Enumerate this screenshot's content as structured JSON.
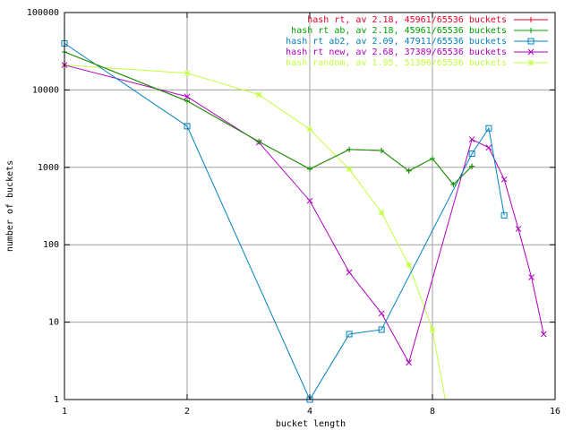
{
  "chart_data": {
    "type": "line",
    "xlabel": "bucket length",
    "ylabel": "number of buckets",
    "x_scale": "log2",
    "y_scale": "log10",
    "xlim": [
      1,
      16
    ],
    "ylim": [
      1,
      100000
    ],
    "x_ticks": [
      "1",
      "2",
      "4",
      "8",
      "16"
    ],
    "y_ticks": [
      "1",
      "10",
      "100",
      "1000",
      "10000",
      "100000"
    ],
    "grid": true,
    "legend_position": "top-right",
    "series": [
      {
        "name": "hash rt, av 2.18, 45961/65536 buckets",
        "color": "#e8002a",
        "marker": "plus",
        "x": [
          1,
          2,
          3,
          4,
          5,
          6,
          7,
          8,
          9,
          10
        ],
        "y": [
          31000,
          7200,
          2150,
          950,
          1700,
          1650,
          900,
          1300,
          600,
          1030
        ]
      },
      {
        "name": "hash rt ab, av 2.18, 45961/65536 buckets",
        "color": "#00a000",
        "marker": "plus",
        "x": [
          1,
          2,
          3,
          4,
          5,
          6,
          7,
          8,
          9,
          10
        ],
        "y": [
          31000,
          7200,
          2150,
          950,
          1700,
          1650,
          900,
          1300,
          600,
          1030
        ]
      },
      {
        "name": "hash rt ab2, av 2.09, 47911/65536 buckets",
        "color": "#0080c0",
        "marker": "square",
        "x": [
          1,
          2,
          4,
          5,
          6,
          10,
          11,
          12
        ],
        "y": [
          40000,
          3400,
          1,
          7,
          8,
          1500,
          3200,
          240
        ]
      },
      {
        "name": "hash rt new, av 2.68, 37389/65536 buckets",
        "color": "#b000c0",
        "marker": "x",
        "x": [
          1,
          2,
          3,
          4,
          5,
          6,
          7,
          10,
          11,
          12,
          13,
          14,
          15
        ],
        "y": [
          21000,
          8200,
          2100,
          370,
          44,
          13,
          3,
          2300,
          1800,
          700,
          160,
          38,
          7
        ]
      },
      {
        "name": "hash random, av 1.95, 51306/65536 buckets",
        "color": "#c0ff40",
        "marker": "star",
        "x": [
          1,
          2,
          3,
          4,
          5,
          6,
          7,
          8,
          8.6
        ],
        "y": [
          21000,
          16500,
          8700,
          3100,
          950,
          260,
          55,
          8,
          1
        ]
      }
    ]
  }
}
